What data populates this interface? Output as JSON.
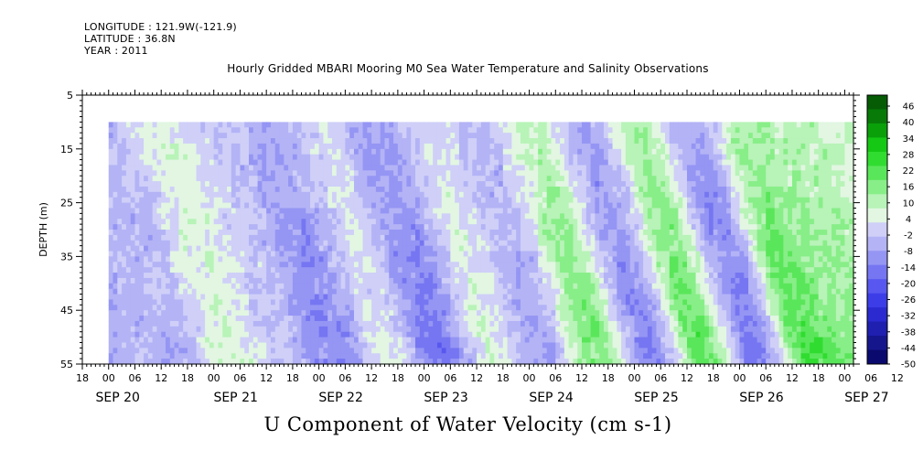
{
  "header": {
    "longitude": "LONGITUDE : 121.9W(-121.9)",
    "latitude": "LATITUDE : 36.8N",
    "year": "YEAR : 2011",
    "title": "Hourly Gridded MBARI Mooring M0 Sea Water Temperature and Salinity Observations"
  },
  "chart_data": {
    "type": "heatmap",
    "title": "Hourly Gridded MBARI Mooring M0 Sea Water Temperature and Salinity Observations",
    "variable_label": "U Component of Water Velocity (cm s-1)",
    "xlabel": "",
    "ylabel": "DEPTH (m)",
    "y_range": [
      5,
      55
    ],
    "y_inverted": true,
    "y_ticks": [
      "5",
      "15",
      "25",
      "35",
      "45",
      "55"
    ],
    "data_depth_range": [
      10,
      55
    ],
    "x_hour_range": [
      -6,
      170
    ],
    "data_hour_range": [
      0,
      170
    ],
    "x_hour_labels": [
      "18",
      "00",
      "06",
      "12",
      "18",
      "00",
      "06",
      "12",
      "18",
      "00",
      "06",
      "12",
      "18",
      "00",
      "06",
      "12",
      "18",
      "00",
      "06",
      "12",
      "18",
      "00",
      "06",
      "12",
      "18",
      "00",
      "06",
      "12",
      "18",
      "00",
      "06",
      "12"
    ],
    "x_day_labels": [
      "SEP 20",
      "SEP 21",
      "SEP 22",
      "SEP 23",
      "SEP 24",
      "SEP 25",
      "SEP 26",
      "SEP 27"
    ],
    "colorbar": {
      "levels": [
        "46",
        "40",
        "34",
        "28",
        "22",
        "16",
        "10",
        "4",
        "-2",
        "-8",
        "-14",
        "-20",
        "-26",
        "-32",
        "-38",
        "-44",
        "-50"
      ],
      "range": [
        -50,
        50
      ],
      "colors": [
        "#0a0a6e",
        "#16168c",
        "#1f1fb0",
        "#2a2ad0",
        "#3d3de8",
        "#5858f0",
        "#7676f2",
        "#9595f4",
        "#b3b3f6",
        "#cfcff8",
        "#e2f6e2",
        "#b8f3b8",
        "#88ee88",
        "#5ae65a",
        "#30dc30",
        "#14c814",
        "#0aa00a",
        "#077a07",
        "#055c05"
      ]
    },
    "approx_velocity_by_day": [
      {
        "time_hours": 0,
        "u": -4
      },
      {
        "time_hours": 12,
        "u": 6
      },
      {
        "time_hours": 24,
        "u": -2
      },
      {
        "time_hours": 36,
        "u": -10
      },
      {
        "time_hours": 48,
        "u": 2
      },
      {
        "time_hours": 60,
        "u": -12
      },
      {
        "time_hours": 72,
        "u": 4
      },
      {
        "time_hours": 84,
        "u": -6
      },
      {
        "time_hours": 96,
        "u": 14
      },
      {
        "time_hours": 108,
        "u": -10
      },
      {
        "time_hours": 120,
        "u": 16
      },
      {
        "time_hours": 132,
        "u": -12
      },
      {
        "time_hours": 144,
        "u": 18
      },
      {
        "time_hours": 156,
        "u": 12
      },
      {
        "time_hours": 168,
        "u": 10
      }
    ]
  }
}
